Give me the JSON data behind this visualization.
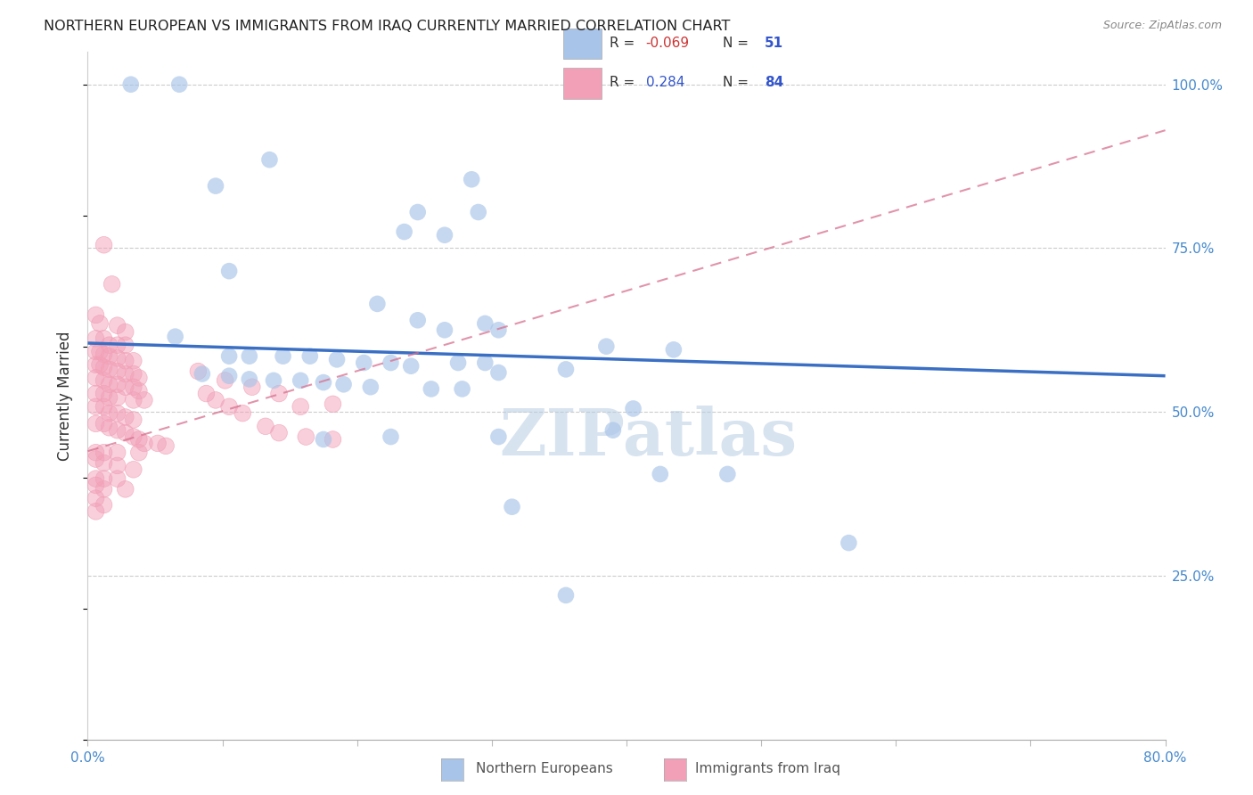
{
  "title": "NORTHERN EUROPEAN VS IMMIGRANTS FROM IRAQ CURRENTLY MARRIED CORRELATION CHART",
  "source": "Source: ZipAtlas.com",
  "ylabel": "Currently Married",
  "xmin": 0.0,
  "xmax": 0.8,
  "ymin": 0.0,
  "ymax": 1.05,
  "xtick_positions": [
    0.0,
    0.1,
    0.2,
    0.3,
    0.4,
    0.5,
    0.6,
    0.7,
    0.8
  ],
  "xticklabels": [
    "0.0%",
    "",
    "",
    "",
    "",
    "",
    "",
    "",
    "80.0%"
  ],
  "ytick_positions": [
    0.25,
    0.5,
    0.75,
    1.0
  ],
  "ytick_labels": [
    "25.0%",
    "50.0%",
    "75.0%",
    "100.0%"
  ],
  "blue_color": "#a8c4e8",
  "pink_color": "#f2a0b8",
  "trend_blue_color": "#3a6fc4",
  "trend_pink_color": "#d87090",
  "watermark": "ZIPatlas",
  "blue_scatter": [
    [
      0.032,
      1.0
    ],
    [
      0.068,
      1.0
    ],
    [
      0.135,
      0.885
    ],
    [
      0.095,
      0.845
    ],
    [
      0.285,
      0.855
    ],
    [
      0.245,
      0.805
    ],
    [
      0.29,
      0.805
    ],
    [
      0.235,
      0.775
    ],
    [
      0.265,
      0.77
    ],
    [
      0.105,
      0.715
    ],
    [
      0.215,
      0.665
    ],
    [
      0.245,
      0.64
    ],
    [
      0.295,
      0.635
    ],
    [
      0.265,
      0.625
    ],
    [
      0.305,
      0.625
    ],
    [
      0.065,
      0.615
    ],
    [
      0.385,
      0.6
    ],
    [
      0.105,
      0.585
    ],
    [
      0.12,
      0.585
    ],
    [
      0.145,
      0.585
    ],
    [
      0.165,
      0.585
    ],
    [
      0.185,
      0.58
    ],
    [
      0.205,
      0.575
    ],
    [
      0.225,
      0.575
    ],
    [
      0.24,
      0.57
    ],
    [
      0.275,
      0.575
    ],
    [
      0.295,
      0.575
    ],
    [
      0.305,
      0.56
    ],
    [
      0.085,
      0.558
    ],
    [
      0.105,
      0.555
    ],
    [
      0.12,
      0.55
    ],
    [
      0.138,
      0.548
    ],
    [
      0.158,
      0.548
    ],
    [
      0.175,
      0.545
    ],
    [
      0.19,
      0.542
    ],
    [
      0.21,
      0.538
    ],
    [
      0.255,
      0.535
    ],
    [
      0.278,
      0.535
    ],
    [
      0.355,
      0.565
    ],
    [
      0.435,
      0.595
    ],
    [
      0.405,
      0.505
    ],
    [
      0.39,
      0.472
    ],
    [
      0.305,
      0.462
    ],
    [
      0.225,
      0.462
    ],
    [
      0.175,
      0.458
    ],
    [
      0.425,
      0.405
    ],
    [
      0.475,
      0.405
    ],
    [
      0.315,
      0.355
    ],
    [
      0.565,
      0.3
    ],
    [
      0.355,
      0.22
    ]
  ],
  "pink_scatter": [
    [
      0.012,
      0.755
    ],
    [
      0.018,
      0.695
    ],
    [
      0.006,
      0.648
    ],
    [
      0.009,
      0.635
    ],
    [
      0.022,
      0.632
    ],
    [
      0.028,
      0.622
    ],
    [
      0.006,
      0.612
    ],
    [
      0.012,
      0.612
    ],
    [
      0.016,
      0.602
    ],
    [
      0.022,
      0.602
    ],
    [
      0.028,
      0.602
    ],
    [
      0.006,
      0.592
    ],
    [
      0.009,
      0.592
    ],
    [
      0.012,
      0.588
    ],
    [
      0.016,
      0.585
    ],
    [
      0.022,
      0.582
    ],
    [
      0.028,
      0.578
    ],
    [
      0.034,
      0.578
    ],
    [
      0.006,
      0.572
    ],
    [
      0.009,
      0.572
    ],
    [
      0.012,
      0.568
    ],
    [
      0.016,
      0.565
    ],
    [
      0.022,
      0.562
    ],
    [
      0.028,
      0.558
    ],
    [
      0.034,
      0.558
    ],
    [
      0.038,
      0.552
    ],
    [
      0.006,
      0.552
    ],
    [
      0.012,
      0.548
    ],
    [
      0.016,
      0.542
    ],
    [
      0.022,
      0.542
    ],
    [
      0.028,
      0.538
    ],
    [
      0.034,
      0.538
    ],
    [
      0.038,
      0.532
    ],
    [
      0.006,
      0.528
    ],
    [
      0.012,
      0.528
    ],
    [
      0.016,
      0.522
    ],
    [
      0.022,
      0.522
    ],
    [
      0.034,
      0.518
    ],
    [
      0.042,
      0.518
    ],
    [
      0.006,
      0.508
    ],
    [
      0.012,
      0.508
    ],
    [
      0.016,
      0.498
    ],
    [
      0.022,
      0.498
    ],
    [
      0.028,
      0.492
    ],
    [
      0.034,
      0.488
    ],
    [
      0.006,
      0.482
    ],
    [
      0.012,
      0.482
    ],
    [
      0.016,
      0.476
    ],
    [
      0.022,
      0.472
    ],
    [
      0.028,
      0.468
    ],
    [
      0.034,
      0.462
    ],
    [
      0.038,
      0.458
    ],
    [
      0.042,
      0.452
    ],
    [
      0.052,
      0.452
    ],
    [
      0.058,
      0.448
    ],
    [
      0.006,
      0.438
    ],
    [
      0.012,
      0.438
    ],
    [
      0.022,
      0.438
    ],
    [
      0.038,
      0.438
    ],
    [
      0.006,
      0.428
    ],
    [
      0.012,
      0.422
    ],
    [
      0.022,
      0.418
    ],
    [
      0.034,
      0.412
    ],
    [
      0.006,
      0.398
    ],
    [
      0.012,
      0.398
    ],
    [
      0.022,
      0.398
    ],
    [
      0.006,
      0.388
    ],
    [
      0.012,
      0.382
    ],
    [
      0.028,
      0.382
    ],
    [
      0.006,
      0.368
    ],
    [
      0.012,
      0.358
    ],
    [
      0.006,
      0.348
    ],
    [
      0.082,
      0.562
    ],
    [
      0.102,
      0.548
    ],
    [
      0.122,
      0.538
    ],
    [
      0.142,
      0.528
    ],
    [
      0.158,
      0.508
    ],
    [
      0.182,
      0.512
    ],
    [
      0.132,
      0.478
    ],
    [
      0.142,
      0.468
    ],
    [
      0.162,
      0.462
    ],
    [
      0.182,
      0.458
    ],
    [
      0.088,
      0.528
    ],
    [
      0.095,
      0.518
    ],
    [
      0.105,
      0.508
    ],
    [
      0.115,
      0.498
    ]
  ],
  "blue_trend_x": [
    0.0,
    0.8
  ],
  "blue_trend_y": [
    0.605,
    0.555
  ],
  "pink_trend_x": [
    0.0,
    0.215
  ],
  "pink_trend_y": [
    0.44,
    0.555
  ]
}
